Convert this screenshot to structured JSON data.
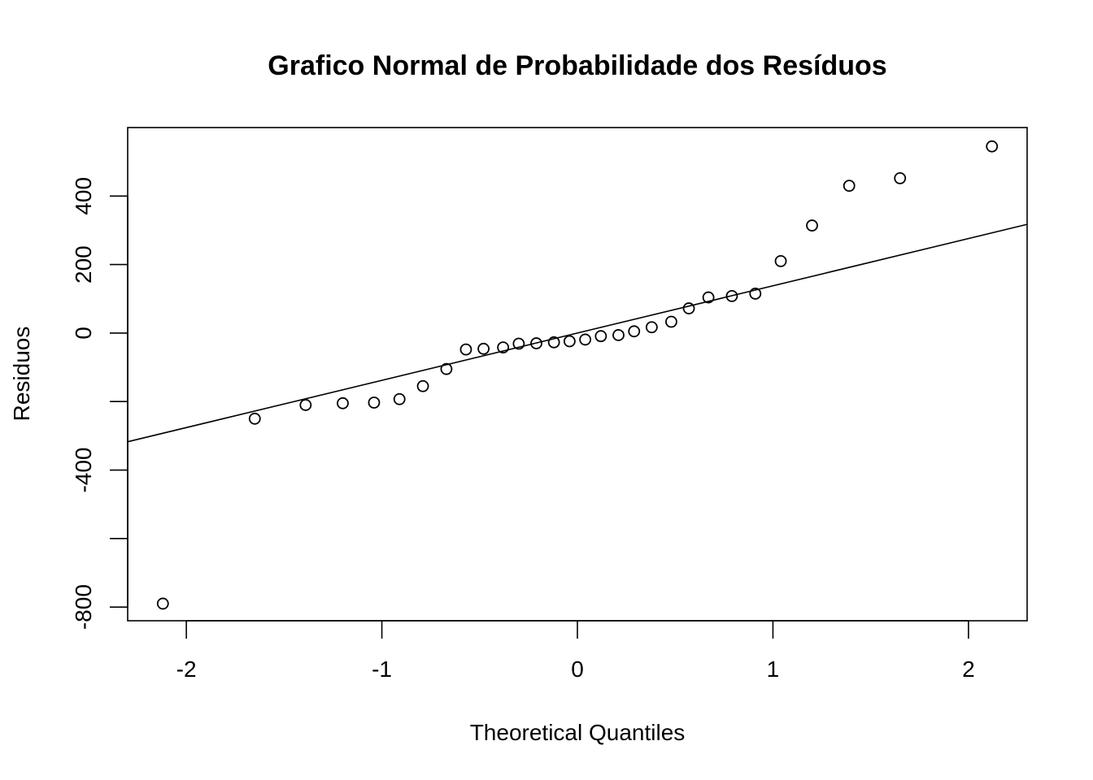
{
  "chart_data": {
    "type": "scatter",
    "title": "Grafico Normal de Probabilidade dos Resíduos",
    "xlabel": "Theoretical Quantiles",
    "ylabel": "Residuos",
    "xlim": [
      -2.3,
      2.3
    ],
    "ylim": [
      -840,
      600
    ],
    "xticks": [
      -2,
      -1,
      0,
      1,
      2
    ],
    "xtick_labels": [
      "-2",
      "-1",
      "0",
      "1",
      "2"
    ],
    "yticks": [
      -800,
      -600,
      -400,
      -200,
      0,
      200,
      400
    ],
    "ytick_labels": [
      "-800",
      "",
      "-400",
      "",
      "0",
      "200",
      "400"
    ],
    "grid": false,
    "legend": "none",
    "points": [
      {
        "x": -2.12,
        "y": -790
      },
      {
        "x": -1.65,
        "y": -250
      },
      {
        "x": -1.39,
        "y": -210
      },
      {
        "x": -1.2,
        "y": -205
      },
      {
        "x": -1.04,
        "y": -203
      },
      {
        "x": -0.91,
        "y": -193
      },
      {
        "x": -0.79,
        "y": -155
      },
      {
        "x": -0.67,
        "y": -105
      },
      {
        "x": -0.57,
        "y": -48
      },
      {
        "x": -0.48,
        "y": -46
      },
      {
        "x": -0.38,
        "y": -42
      },
      {
        "x": -0.3,
        "y": -31
      },
      {
        "x": -0.21,
        "y": -30
      },
      {
        "x": -0.12,
        "y": -27
      },
      {
        "x": -0.04,
        "y": -24
      },
      {
        "x": 0.04,
        "y": -19
      },
      {
        "x": 0.12,
        "y": -9
      },
      {
        "x": 0.21,
        "y": -6
      },
      {
        "x": 0.29,
        "y": 5
      },
      {
        "x": 0.38,
        "y": 17
      },
      {
        "x": 0.48,
        "y": 33
      },
      {
        "x": 0.57,
        "y": 72
      },
      {
        "x": 0.67,
        "y": 104
      },
      {
        "x": 0.79,
        "y": 108
      },
      {
        "x": 0.91,
        "y": 115
      },
      {
        "x": 1.04,
        "y": 210
      },
      {
        "x": 1.2,
        "y": 314
      },
      {
        "x": 1.39,
        "y": 430
      },
      {
        "x": 1.65,
        "y": 452
      },
      {
        "x": 2.12,
        "y": 545
      }
    ],
    "reference_line": {
      "intercept": 0,
      "slope": 138
    }
  }
}
